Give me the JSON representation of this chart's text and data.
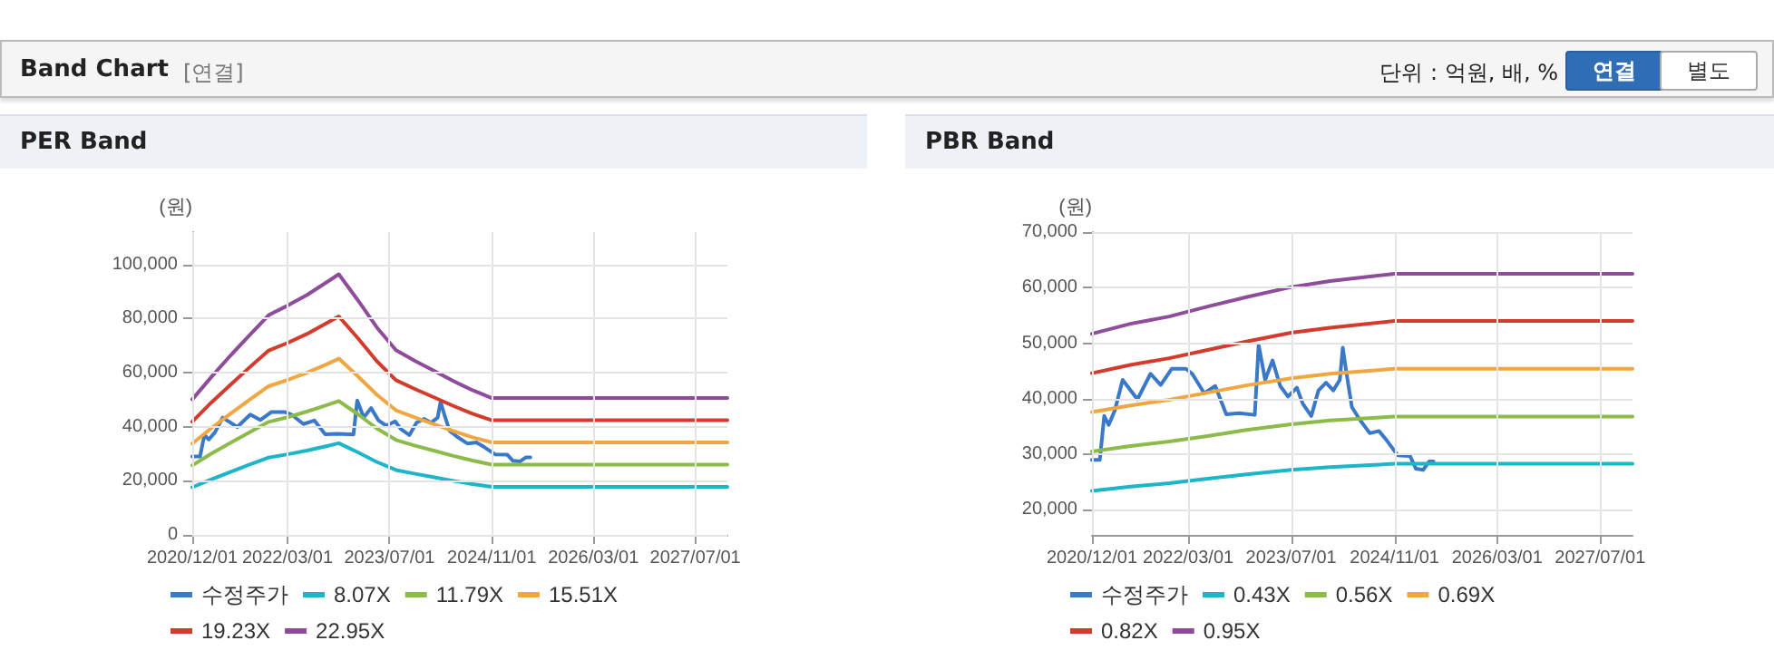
{
  "chart_data": [
    {
      "type": "line",
      "title": "PER Band",
      "ylabel": "(원)",
      "annotations": [
        "Band Chart",
        "[연결]",
        "단위 : 억원, 배, %",
        "연결",
        "별도"
      ],
      "x": [
        "2020-12-01",
        "2021-03-01",
        "2021-06-01",
        "2021-09-01",
        "2021-12-01",
        "2022-03-01",
        "2022-06-01",
        "2022-09-01",
        "2022-11-01",
        "2023-02-01",
        "2023-05-01",
        "2023-08-01",
        "2023-11-01",
        "2024-02-01",
        "2024-05-01",
        "2024-08-01",
        "2024-11-01",
        "2027-12-01"
      ],
      "series": [
        {
          "name": "수정주가",
          "color": "#3a78c8",
          "x": [
            "2020-12-01",
            "2021-01-07",
            "2021-01-28",
            "2021-02-18",
            "2021-03-20",
            "2021-04-25",
            "2021-07-04",
            "2021-09-04",
            "2021-10-22",
            "2021-12-13",
            "2022-02-18",
            "2022-03-20",
            "2022-05-16",
            "2022-07-07",
            "2022-08-28",
            "2022-10-28",
            "2023-01-10",
            "2023-01-28",
            "2023-02-28",
            "2023-04-04",
            "2023-05-10",
            "2023-06-16",
            "2023-07-28",
            "2023-08-25",
            "2023-10-04",
            "2023-11-07",
            "2023-12-13",
            "2024-01-16",
            "2024-02-16",
            "2024-03-01",
            "2024-03-19",
            "2024-04-13",
            "2024-05-19",
            "2024-07-07",
            "2024-08-19",
            "2024-09-25",
            "2024-11-16",
            "2025-01-13",
            "2025-02-10",
            "2025-03-16",
            "2025-04-13",
            "2025-05-04"
          ],
          "values": [
            29000,
            29000,
            36900,
            35300,
            38000,
            43400,
            39900,
            44500,
            42500,
            45400,
            45400,
            44500,
            41000,
            42300,
            37200,
            37400,
            37100,
            49700,
            43400,
            46900,
            42300,
            40400,
            42000,
            39100,
            36900,
            41500,
            42900,
            41500,
            43400,
            49200,
            44500,
            38500,
            36300,
            33800,
            34200,
            32500,
            29800,
            29700,
            27400,
            27200,
            28700,
            28700
          ]
        },
        {
          "name": "8.07X",
          "color": "#1fb5c8",
          "values": [
            17600,
            20500,
            23300,
            26000,
            28600,
            29800,
            31200,
            32800,
            33900,
            30500,
            27000,
            24000,
            22600,
            21300,
            20000,
            18800,
            17800,
            17800
          ]
        },
        {
          "name": "11.79X",
          "color": "#8cbb4a",
          "values": [
            25700,
            30000,
            34000,
            38000,
            41800,
            43500,
            45600,
            47900,
            49500,
            44600,
            39400,
            35100,
            33000,
            31100,
            29200,
            27500,
            26000,
            26000
          ]
        },
        {
          "name": "15.51X",
          "color": "#f0a742",
          "values": [
            33800,
            39400,
            44800,
            50000,
            55000,
            57300,
            60000,
            63000,
            65200,
            58600,
            51900,
            46100,
            43400,
            40900,
            38400,
            36100,
            34200,
            34200
          ]
        },
        {
          "name": "19.23X",
          "color": "#d33b2c",
          "values": [
            41900,
            48900,
            55500,
            62000,
            68200,
            71000,
            74300,
            78200,
            80800,
            72700,
            64300,
            57200,
            53900,
            50800,
            47700,
            44800,
            42400,
            42400
          ]
        },
        {
          "name": "22.95X",
          "color": "#8e4c9b",
          "values": [
            50100,
            58300,
            66300,
            73900,
            81300,
            84800,
            88700,
            93300,
            96400,
            86700,
            76800,
            68300,
            64300,
            60600,
            56900,
            53500,
            50600,
            50600
          ]
        }
      ],
      "xlim": [
        "2020-12-01",
        "2027-12-01"
      ],
      "xticks": [
        {
          "value": "2020-12-01",
          "label": "2020/12/01"
        },
        {
          "value": "2022-03-01",
          "label": "2022/03/01"
        },
        {
          "value": "2023-07-01",
          "label": "2023/07/01"
        },
        {
          "value": "2024-11-01",
          "label": "2024/11/01"
        },
        {
          "value": "2026-03-01",
          "label": "2026/03/01"
        },
        {
          "value": "2027-07-01",
          "label": "2027/07/01"
        }
      ],
      "ylim": [
        0,
        112000
      ],
      "yticks": [
        {
          "value": 0,
          "label": "0"
        },
        {
          "value": 20000,
          "label": "20,000"
        },
        {
          "value": 40000,
          "label": "40,000"
        },
        {
          "value": 60000,
          "label": "60,000"
        },
        {
          "value": 80000,
          "label": "80,000"
        },
        {
          "value": 100000,
          "label": "100,000"
        }
      ],
      "grid": true,
      "legend": "bottom",
      "marker": "none",
      "line_style": "solid"
    },
    {
      "type": "line",
      "title": "PBR Band",
      "ylabel": "(원)",
      "x": [
        "2020-12-01",
        "2021-06-01",
        "2021-12-01",
        "2022-06-01",
        "2022-12-01",
        "2023-07-01",
        "2024-01-01",
        "2024-11-01",
        "2027-12-01"
      ],
      "series": [
        {
          "name": "수정주가",
          "color": "#3a78c8",
          "x": [
            "2020-12-01",
            "2021-01-07",
            "2021-01-28",
            "2021-02-18",
            "2021-03-20",
            "2021-04-25",
            "2021-07-04",
            "2021-09-04",
            "2021-10-22",
            "2021-12-13",
            "2022-02-18",
            "2022-03-20",
            "2022-05-16",
            "2022-07-07",
            "2022-08-28",
            "2022-10-28",
            "2023-01-10",
            "2023-01-28",
            "2023-02-28",
            "2023-04-04",
            "2023-05-10",
            "2023-06-16",
            "2023-07-28",
            "2023-08-25",
            "2023-10-04",
            "2023-11-07",
            "2023-12-13",
            "2024-01-16",
            "2024-02-16",
            "2024-03-01",
            "2024-03-19",
            "2024-04-13",
            "2024-05-19",
            "2024-07-07",
            "2024-08-19",
            "2024-09-25",
            "2024-11-16",
            "2025-01-13",
            "2025-02-10",
            "2025-03-16",
            "2025-04-13",
            "2025-05-04"
          ],
          "values": [
            29000,
            29000,
            36900,
            35300,
            38000,
            43400,
            39900,
            44500,
            42500,
            45400,
            45400,
            44500,
            41000,
            42300,
            37200,
            37400,
            37100,
            49700,
            43400,
            46900,
            42300,
            40400,
            42000,
            39100,
            36900,
            41500,
            42900,
            41500,
            43400,
            49200,
            44500,
            38500,
            36300,
            33800,
            34200,
            32500,
            29800,
            29700,
            27400,
            27200,
            28700,
            28700
          ]
        },
        {
          "name": "0.43X",
          "color": "#1fb5c8",
          "values": [
            23400,
            24200,
            24800,
            25600,
            26400,
            27200,
            27700,
            28300,
            28300
          ]
        },
        {
          "name": "0.56X",
          "color": "#8cbb4a",
          "values": [
            30500,
            31500,
            32300,
            33300,
            34400,
            35400,
            36100,
            36800,
            36800
          ]
        },
        {
          "name": "0.69X",
          "color": "#f0a742",
          "values": [
            37600,
            38800,
            39800,
            41100,
            42400,
            43700,
            44500,
            45400,
            45400
          ]
        },
        {
          "name": "0.82X",
          "color": "#d33b2c",
          "values": [
            44600,
            46100,
            47300,
            48800,
            50300,
            51900,
            52800,
            54000,
            54000
          ]
        },
        {
          "name": "0.95X",
          "color": "#8e4c9b",
          "values": [
            51700,
            53500,
            54800,
            56600,
            58300,
            60100,
            61200,
            62500,
            62500
          ]
        }
      ],
      "xlim": [
        "2020-12-01",
        "2027-12-01"
      ],
      "xticks": [
        {
          "value": "2020-12-01",
          "label": "2020/12/01"
        },
        {
          "value": "2022-03-01",
          "label": "2022/03/01"
        },
        {
          "value": "2023-07-01",
          "label": "2023/07/01"
        },
        {
          "value": "2024-11-01",
          "label": "2024/11/01"
        },
        {
          "value": "2026-03-01",
          "label": "2026/03/01"
        },
        {
          "value": "2027-07-01",
          "label": "2027/07/01"
        }
      ],
      "ylim": [
        15500,
        70000
      ],
      "yticks": [
        {
          "value": 20000,
          "label": "20,000"
        },
        {
          "value": 30000,
          "label": "30,000"
        },
        {
          "value": 40000,
          "label": "40,000"
        },
        {
          "value": 50000,
          "label": "50,000"
        },
        {
          "value": 60000,
          "label": "60,000"
        },
        {
          "value": 70000,
          "label": "70,000"
        }
      ],
      "grid": true,
      "legend": "bottom",
      "marker": "none",
      "line_style": "solid"
    }
  ]
}
